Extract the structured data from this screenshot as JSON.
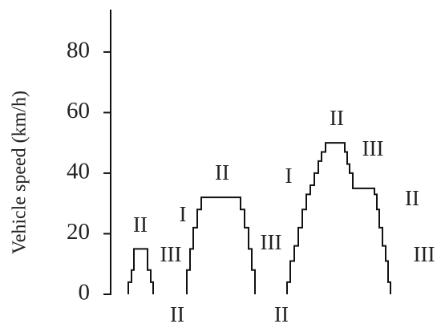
{
  "chart_data": {
    "type": "line",
    "y_label": "Vehicle speed (km/h)",
    "color": "#111111",
    "ylim": [
      0,
      94
    ],
    "yticks": [
      0,
      20,
      40,
      60,
      80
    ],
    "xlim": [
      0,
      412
    ],
    "x": [
      22,
      22,
      26,
      26,
      29,
      29,
      46,
      46,
      50,
      50,
      53,
      53,
      null,
      95,
      95,
      99,
      99,
      103,
      103,
      108,
      108,
      113,
      113,
      162,
      162,
      167,
      167,
      172,
      172,
      176,
      176,
      180,
      180,
      null,
      220,
      220,
      224,
      224,
      229,
      229,
      234,
      234,
      239,
      239,
      244,
      244,
      249,
      249,
      254,
      254,
      259,
      259,
      263,
      263,
      268,
      268,
      292,
      292,
      295,
      295,
      298,
      298,
      302,
      302,
      329,
      329,
      332,
      332,
      335,
      335,
      339,
      339,
      343,
      343,
      346,
      346,
      349,
      349
    ],
    "values": [
      0,
      4,
      4,
      8,
      8,
      15,
      15,
      8,
      8,
      4,
      4,
      0,
      null,
      0,
      8,
      8,
      15,
      15,
      22,
      22,
      28,
      28,
      32,
      32,
      28,
      28,
      22,
      22,
      15,
      15,
      8,
      8,
      0,
      null,
      0,
      4,
      4,
      11,
      11,
      16,
      16,
      22,
      22,
      28,
      28,
      33,
      33,
      36,
      36,
      40,
      40,
      44,
      44,
      47,
      47,
      50,
      50,
      47,
      47,
      43,
      43,
      40,
      40,
      35,
      35,
      33,
      33,
      28,
      28,
      22,
      22,
      16,
      16,
      11,
      11,
      4,
      4,
      0
    ],
    "annotations": [
      "II",
      "III",
      "I",
      "II",
      "II",
      "III",
      "II",
      "I",
      "II",
      "III",
      "II",
      "III"
    ]
  }
}
